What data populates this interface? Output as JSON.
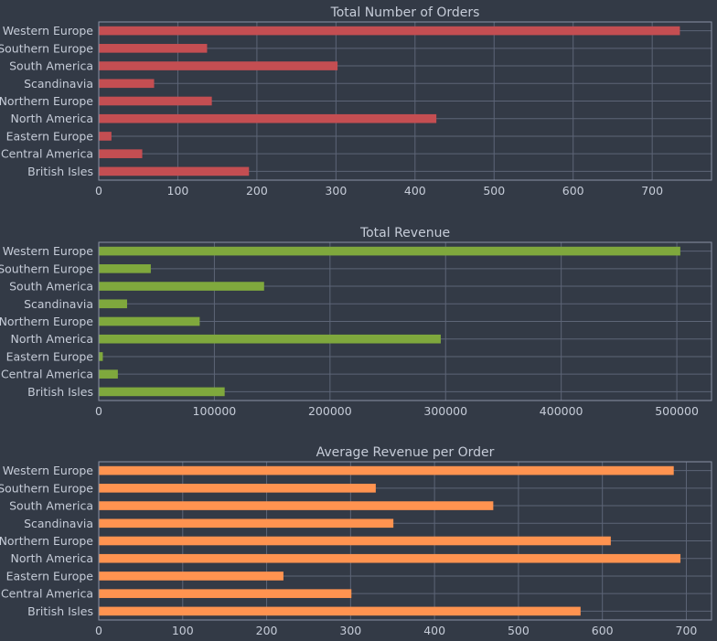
{
  "colors": {
    "background": "#333a46",
    "panel": "#333a46",
    "grid": "#5d6577",
    "border": "#8b93a5",
    "text": "#c6ccd8"
  },
  "chart_data": [
    {
      "type": "bar",
      "orientation": "horizontal",
      "title": "Total Number of Orders",
      "categories": [
        "Western Europe",
        "Southern Europe",
        "South America",
        "Scandinavia",
        "Northern Europe",
        "North America",
        "Eastern Europe",
        "Central America",
        "British Isles"
      ],
      "values": [
        735,
        137,
        302,
        70,
        143,
        427,
        16,
        55,
        190
      ],
      "xlim": [
        0,
        775
      ],
      "xticks": [
        0,
        100,
        200,
        300,
        400,
        500,
        600,
        700
      ],
      "color": "#c44e52",
      "grid": true
    },
    {
      "type": "bar",
      "orientation": "horizontal",
      "title": "Total Revenue",
      "categories": [
        "Western Europe",
        "Southern Europe",
        "South America",
        "Scandinavia",
        "Northern Europe",
        "North America",
        "Eastern Europe",
        "Central America",
        "British Isles"
      ],
      "values": [
        503000,
        45000,
        143000,
        24500,
        87300,
        295800,
        3500,
        16500,
        108900
      ],
      "xlim": [
        0,
        530000
      ],
      "xticks": [
        0,
        100000,
        200000,
        300000,
        400000,
        500000
      ],
      "color": "#7fa83d",
      "grid": true
    },
    {
      "type": "bar",
      "orientation": "horizontal",
      "title": "Average Revenue per Order",
      "categories": [
        "Western Europe",
        "Southern Europe",
        "South America",
        "Scandinavia",
        "Northern Europe",
        "North America",
        "Eastern Europe",
        "Central America",
        "British Isles"
      ],
      "values": [
        685,
        330,
        470,
        351,
        610,
        693,
        220,
        301,
        574
      ],
      "xlim": [
        0,
        730
      ],
      "xticks": [
        0,
        100,
        200,
        300,
        400,
        500,
        600,
        700
      ],
      "color": "#ff9350",
      "grid": true
    }
  ]
}
